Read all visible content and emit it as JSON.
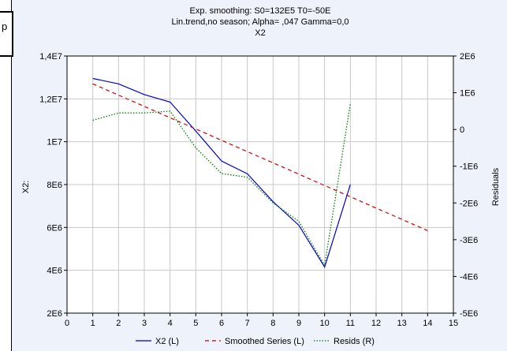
{
  "left_box_text": "p",
  "chart_data": {
    "type": "line",
    "title_lines": [
      "Exp. smoothing:  S0=132E5 T0=-50E",
      "Lin.trend,no season; Alpha=  ,047 Gamma=0,0",
      "X2"
    ],
    "xlabel": "",
    "ylabel_left": "X2:",
    "ylabel_right": "Residuals",
    "xlim": [
      0,
      15
    ],
    "ylim_left": [
      2000000,
      14000000
    ],
    "ylim_right": [
      -5000000,
      2000000
    ],
    "x_ticks": [
      "0",
      "1",
      "2",
      "3",
      "4",
      "5",
      "6",
      "7",
      "8",
      "9",
      "10",
      "11",
      "12",
      "13",
      "14",
      "15"
    ],
    "y_left_ticks": [
      {
        "value": 2000000,
        "label": "2E6"
      },
      {
        "value": 4000000,
        "label": "4E6"
      },
      {
        "value": 6000000,
        "label": "6E6"
      },
      {
        "value": 8000000,
        "label": "8E6"
      },
      {
        "value": 10000000,
        "label": "1E7"
      },
      {
        "value": 12000000,
        "label": "1,2E7"
      },
      {
        "value": 14000000,
        "label": "1,4E7"
      }
    ],
    "y_right_ticks": [
      {
        "value": 2000000,
        "label": "2E6"
      },
      {
        "value": 1000000,
        "label": "1E6"
      },
      {
        "value": 0,
        "label": "0"
      },
      {
        "value": -1000000,
        "label": "-1E6"
      },
      {
        "value": -2000000,
        "label": "-2E6"
      },
      {
        "value": -3000000,
        "label": "-3E6"
      },
      {
        "value": -4000000,
        "label": "-4E6"
      },
      {
        "value": -5000000,
        "label": "-5E6"
      }
    ],
    "grid": true,
    "legend_position": "bottom",
    "series": [
      {
        "name": "X2 (L)",
        "axis": "left",
        "color": "#0000cc",
        "style": "solid",
        "x": [
          1,
          2,
          3,
          4,
          5,
          6,
          7,
          8,
          9,
          10,
          11
        ],
        "values": [
          12950000,
          12700000,
          12200000,
          11850000,
          10500000,
          9100000,
          8500000,
          7200000,
          6100000,
          4150000,
          8000000
        ]
      },
      {
        "name": "Smoothed Series (L)",
        "axis": "left",
        "color": "#cc0000",
        "style": "dashed",
        "x": [
          1,
          14
        ],
        "values": [
          12700000,
          5850000
        ]
      },
      {
        "name": "Resids (R)",
        "axis": "right",
        "color": "#008000",
        "style": "dotted",
        "x": [
          1,
          2,
          3,
          4,
          5,
          6,
          7,
          8,
          9,
          10,
          11
        ],
        "values": [
          250000,
          450000,
          450000,
          500000,
          -500000,
          -1200000,
          -1300000,
          -2000000,
          -2500000,
          -3700000,
          700000
        ]
      }
    ]
  }
}
